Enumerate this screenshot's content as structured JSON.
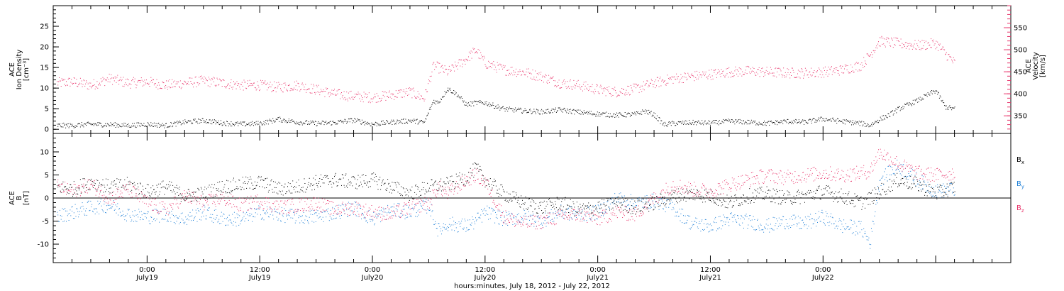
{
  "chart_data": [
    {
      "type": "scatter",
      "panel": "top",
      "ylabel_left": [
        "ACE",
        "Ion Density",
        "[cm⁻³]"
      ],
      "ylabel_right": [
        "ACE",
        "Velocity",
        "[km/s]"
      ],
      "ylim_left": [
        -1,
        30
      ],
      "ylim_right": [
        310,
        600
      ],
      "yticks_left": [
        "0",
        "5",
        "10",
        "15",
        "20",
        "25"
      ],
      "yticks_right": [
        "350",
        "400",
        "450",
        "500",
        "550"
      ],
      "colors": {
        "density": "#000000",
        "velocity": "#e8336a"
      },
      "series": [
        {
          "axis": "left",
          "color": "#000000",
          "x": [
            -9.6,
            -8,
            -6,
            -4,
            -2,
            0,
            2,
            4,
            6,
            8,
            10,
            12,
            14,
            16,
            18,
            20,
            22,
            24,
            26,
            28,
            29.5,
            30.5,
            31,
            32,
            33,
            34,
            35,
            36,
            38,
            40,
            42,
            44,
            46,
            48,
            50,
            52,
            53,
            54,
            55,
            56,
            58,
            60,
            62,
            64,
            66,
            68,
            70,
            72,
            74,
            76,
            77,
            78,
            79,
            80,
            82,
            84,
            85,
            86
          ],
          "y": [
            1.0,
            1.0,
            1.3,
            1.2,
            1.0,
            1.3,
            1.0,
            1.8,
            2.2,
            1.6,
            1.3,
            1.5,
            2.5,
            1.8,
            1.5,
            1.7,
            2.3,
            1.3,
            1.8,
            2.2,
            1.7,
            7.0,
            6.5,
            10.0,
            8.5,
            6.0,
            6.5,
            6.5,
            5.0,
            4.6,
            4.3,
            4.8,
            4.2,
            3.8,
            3.5,
            3.7,
            4.5,
            3.6,
            1.2,
            1.5,
            1.7,
            1.6,
            2.0,
            1.8,
            1.5,
            2.0,
            1.8,
            2.6,
            2.0,
            1.5,
            1.0,
            2.5,
            3.5,
            5.0,
            7.0,
            9.5,
            5.5,
            5.0
          ]
        },
        {
          "axis": "right",
          "color": "#e8336a",
          "x": [
            -9.6,
            -8,
            -6,
            -4,
            -2,
            0,
            2,
            4,
            6,
            8,
            10,
            12,
            14,
            16,
            18,
            20,
            22,
            24,
            26,
            28,
            29.5,
            30.5,
            32,
            34,
            35,
            36,
            38,
            40,
            42,
            44,
            46,
            48,
            50,
            52,
            54,
            56,
            58,
            60,
            62,
            64,
            66,
            68,
            70,
            72,
            74,
            76,
            77,
            78,
            80,
            82,
            84,
            86
          ],
          "y": [
            425,
            428,
            420,
            435,
            425,
            428,
            420,
            425,
            430,
            425,
            420,
            420,
            415,
            420,
            410,
            400,
            395,
            392,
            398,
            405,
            390,
            465,
            450,
            480,
            500,
            470,
            455,
            450,
            440,
            425,
            420,
            410,
            405,
            412,
            425,
            435,
            440,
            445,
            450,
            452,
            450,
            448,
            448,
            450,
            455,
            465,
            490,
            520,
            515,
            510,
            515,
            470
          ]
        }
      ]
    },
    {
      "type": "scatter",
      "panel": "bottom",
      "ylabel": [
        "ACE",
        "B",
        "[nT]"
      ],
      "ylim": [
        -14,
        14
      ],
      "yticks": [
        "-10",
        "-5",
        "0",
        "5",
        "10"
      ],
      "zero_line": true,
      "series": [
        {
          "name": "B",
          "subscript": "x",
          "color": "#000000",
          "x": [
            -9.6,
            -8,
            -6,
            -4,
            -2,
            0,
            2,
            4,
            6,
            8,
            10,
            12,
            14,
            16,
            18,
            20,
            22,
            24,
            26,
            28,
            30,
            32,
            34,
            35,
            36,
            38,
            40,
            42,
            44,
            46,
            48,
            50,
            52,
            54,
            56,
            58,
            60,
            62,
            64,
            66,
            68,
            70,
            72,
            74,
            76,
            77,
            78,
            80,
            82,
            84,
            86
          ],
          "y": [
            2.5,
            2.0,
            3.5,
            2.5,
            3.0,
            1.5,
            2.5,
            0.5,
            1.0,
            2.5,
            3.0,
            3.5,
            2.0,
            2.5,
            3.5,
            4.0,
            3.5,
            4.0,
            2.5,
            1.0,
            2.5,
            3.0,
            4.5,
            6.5,
            4.0,
            1.0,
            -1.0,
            -2.0,
            -1.0,
            -2.5,
            -2.0,
            -1.0,
            -2.0,
            -1.0,
            0.5,
            1.0,
            0.5,
            -1.0,
            0.5,
            1.0,
            0.0,
            0.5,
            1.5,
            0.5,
            -1.0,
            0.0,
            1.5,
            4.0,
            3.0,
            1.0,
            2.5
          ]
        },
        {
          "name": "B",
          "subscript": "y",
          "color": "#1e7fd6",
          "x": [
            -9.6,
            -8,
            -6,
            -4,
            -2,
            0,
            2,
            4,
            6,
            8,
            10,
            12,
            14,
            16,
            18,
            20,
            22,
            24,
            26,
            28,
            30,
            31,
            32,
            34,
            35,
            36,
            38,
            40,
            42,
            44,
            46,
            48,
            50,
            52,
            54,
            56,
            58,
            60,
            62,
            64,
            66,
            68,
            70,
            72,
            74,
            76,
            77,
            78,
            80,
            82,
            84,
            86
          ],
          "y": [
            -4.0,
            -3.0,
            -2.0,
            -1.5,
            -3.5,
            -4.0,
            -3.5,
            -4.5,
            -3.0,
            -4.5,
            -4.5,
            -3.0,
            -3.5,
            -4.0,
            -4.0,
            -3.0,
            -2.0,
            -4.5,
            -2.5,
            -3.0,
            -1.5,
            -7.0,
            -5.5,
            -6.0,
            -5.0,
            -3.0,
            -4.5,
            -4.0,
            -5.0,
            -3.0,
            -3.5,
            -3.0,
            0.0,
            -1.0,
            -0.5,
            -2.0,
            -5.5,
            -6.0,
            -4.5,
            -5.0,
            -6.0,
            -5.0,
            -5.5,
            -4.0,
            -6.0,
            -6.5,
            -9.5,
            4.0,
            7.0,
            4.0,
            1.5,
            2.0
          ]
        },
        {
          "name": "B",
          "subscript": "z",
          "color": "#e8336a",
          "x": [
            -9.6,
            -8,
            -6,
            -4,
            -2,
            0,
            2,
            4,
            6,
            8,
            10,
            12,
            14,
            16,
            18,
            20,
            22,
            24,
            26,
            28,
            30,
            31,
            32,
            34,
            35,
            36,
            38,
            40,
            42,
            44,
            46,
            48,
            50,
            52,
            54,
            56,
            58,
            60,
            62,
            64,
            66,
            68,
            70,
            72,
            74,
            76,
            77,
            78,
            80,
            82,
            84,
            86
          ],
          "y": [
            2.5,
            1.5,
            3.0,
            0.0,
            2.0,
            -1.0,
            -2.5,
            0.5,
            -1.0,
            0.0,
            -1.5,
            -0.5,
            -2.0,
            -1.5,
            -1.0,
            -2.5,
            -2.0,
            -3.0,
            -3.5,
            -2.0,
            -1.0,
            2.5,
            1.0,
            4.0,
            5.0,
            3.5,
            -4.0,
            -5.5,
            -5.0,
            -4.0,
            -3.5,
            -4.5,
            -3.0,
            -3.5,
            0.0,
            3.0,
            2.0,
            1.5,
            3.0,
            4.0,
            5.0,
            4.5,
            5.0,
            5.5,
            5.0,
            5.5,
            6.0,
            10.0,
            7.5,
            5.5,
            5.0,
            5.5
          ]
        }
      ]
    }
  ],
  "x_axis": {
    "xlim": [
      -10,
      92
    ],
    "ticks": [
      {
        "x": 0,
        "time": "0:00",
        "date": "July19"
      },
      {
        "x": 12,
        "time": "12:00",
        "date": "July19"
      },
      {
        "x": 24,
        "time": "0:00",
        "date": "July20"
      },
      {
        "x": 36,
        "time": "12:00",
        "date": "July20"
      },
      {
        "x": 48,
        "time": "0:00",
        "date": "July21"
      },
      {
        "x": 60,
        "time": "12:00",
        "date": "July21"
      },
      {
        "x": 72,
        "time": "0:00",
        "date": "July22"
      }
    ],
    "xlabel": "hours:minutes, July 18, 2012 - July 22, 2012"
  }
}
